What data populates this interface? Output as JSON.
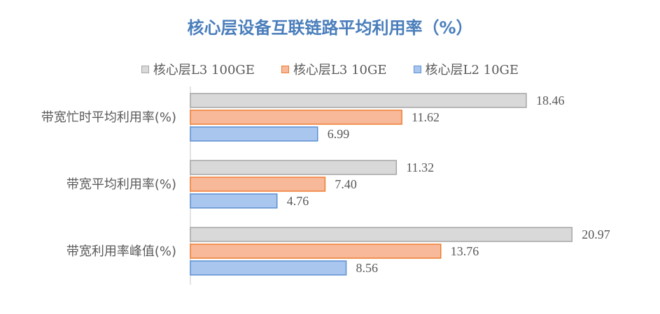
{
  "chart_data": {
    "type": "bar",
    "orientation": "horizontal",
    "title": "核心层设备互联链路平均利用率（%）",
    "categories": [
      "带宽忙时平均利用率(%)",
      "带宽平均利用率(%)",
      "带宽利用率峰值(%)"
    ],
    "series": [
      {
        "name": "核心层L3 100GE",
        "values": [
          18.46,
          11.32,
          20.97
        ],
        "fill": "#d9d9d9",
        "stroke": "#a6a6a6"
      },
      {
        "name": "核心层L3 10GE",
        "values": [
          11.62,
          7.4,
          13.76
        ],
        "fill": "#f8b89a",
        "stroke": "#ed7d31"
      },
      {
        "name": "核心层L2 10GE",
        "values": [
          6.99,
          4.76,
          8.56
        ],
        "fill": "#a9c6ee",
        "stroke": "#5b8fd4"
      }
    ],
    "value_labels": [
      [
        "18.46",
        "11.32",
        "20.97"
      ],
      [
        "11.62",
        "7.40",
        "13.76"
      ],
      [
        "6.99",
        "4.76",
        "8.56"
      ]
    ],
    "xlim": [
      0,
      25
    ],
    "grid": false,
    "legend_position": "top"
  }
}
